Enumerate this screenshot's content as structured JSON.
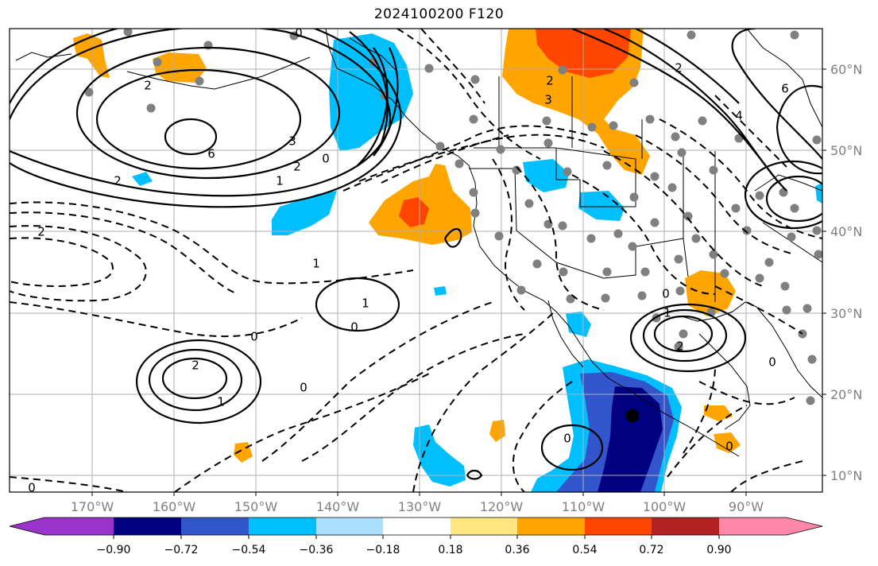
{
  "title": "2024100200 F120",
  "map": {
    "lon_range": [
      -180,
      -80
    ],
    "lat_range": [
      8,
      65
    ],
    "lon_ticks": [
      "170°W",
      "160°W",
      "150°W",
      "140°W",
      "130°W",
      "120°W",
      "110°W",
      "100°W",
      "90°W"
    ],
    "lat_ticks": [
      "10°N",
      "20°N",
      "30°N",
      "40°N",
      "50°N",
      "60°N"
    ],
    "gridlines": true,
    "contour_labels": [
      "2",
      "4",
      "6",
      "3",
      "2",
      "1",
      "0",
      "2",
      "0",
      "2",
      "3",
      "2",
      "1",
      "0",
      "1",
      "0",
      "0",
      "0",
      "0",
      "2",
      "1",
      "1",
      "2",
      "0",
      "0",
      "6",
      "4",
      "2",
      "0"
    ],
    "significance_marker": "gray-dot",
    "center_marker": "black-dot"
  },
  "colorbar": {
    "ticks": [
      "−0.90",
      "−0.72",
      "−0.54",
      "−0.36",
      "−0.18",
      "0.18",
      "0.36",
      "0.54",
      "0.72",
      "0.90"
    ],
    "colors": [
      "#9933cc",
      "#000080",
      "#3355cc",
      "#00bfff",
      "#aadfff",
      "#ffffff",
      "#ffe680",
      "#ffa500",
      "#ff4500",
      "#b22222",
      "#ff88aa"
    ],
    "extend": "both"
  }
}
